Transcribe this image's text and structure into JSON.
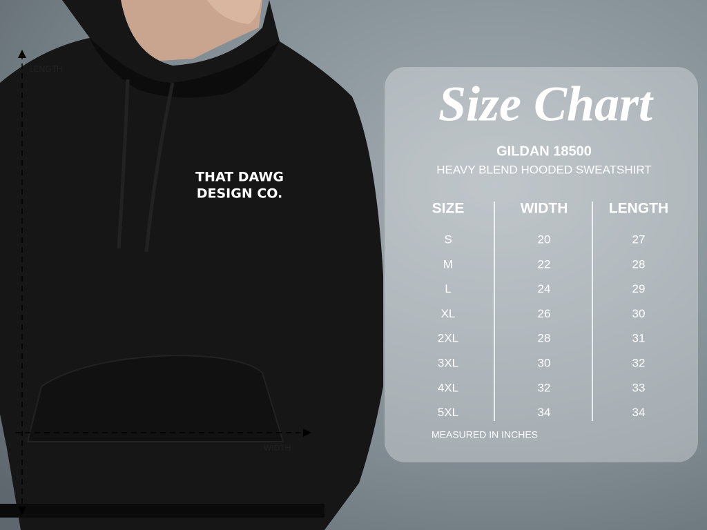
{
  "title": "Size Chart",
  "product": {
    "model": "GILDAN 18500",
    "name": "HEAVY BLEND HOODED SWEATSHIRT"
  },
  "logo": {
    "line1": "THAT DAWG",
    "line2": "DESIGN CO."
  },
  "measure_labels": {
    "length": "LENGTH",
    "width": "WIDTH"
  },
  "table": {
    "header": [
      "SIZE",
      "WIDTH",
      "LENGTH"
    ],
    "rows": [
      [
        "S",
        20,
        27
      ],
      [
        "M",
        22,
        28
      ],
      [
        "L",
        24,
        29
      ],
      [
        "XL",
        26,
        30
      ],
      [
        "2XL",
        28,
        31
      ],
      [
        "3XL",
        30,
        32
      ],
      [
        "4XL",
        32,
        33
      ],
      [
        "5XL",
        34,
        34
      ]
    ]
  },
  "footnote": "MEASURED IN INCHES"
}
